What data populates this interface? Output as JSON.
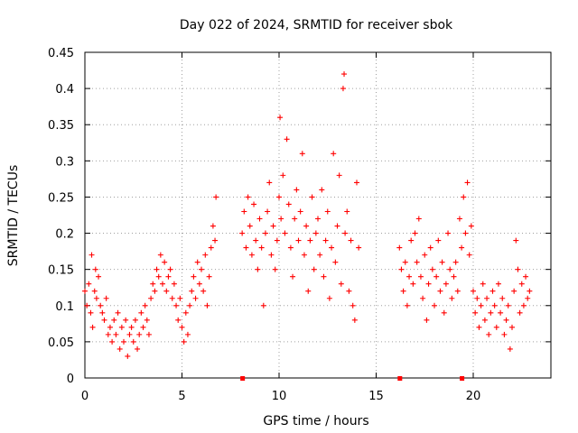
{
  "chart_data": {
    "type": "scatter",
    "title": "Day 022 of 2024, SRMTID for receiver sbok",
    "xlabel": "GPS time / hours",
    "ylabel": "SRMTID / TECUs",
    "xlim": [
      0,
      24
    ],
    "ylim": [
      0,
      0.45
    ],
    "xticks": [
      0,
      5,
      10,
      15,
      20
    ],
    "xtick_labels": [
      "0",
      "5",
      "10",
      "15",
      "20"
    ],
    "yticks": [
      0,
      0.05,
      0.1,
      0.15,
      0.2,
      0.25,
      0.3,
      0.35,
      0.4,
      0.45
    ],
    "ytick_labels": [
      "0",
      "0.05",
      "0.1",
      "0.15",
      "0.2",
      "0.25",
      "0.3",
      "0.35",
      "0.4",
      "0.45"
    ],
    "grid": true,
    "marker": "+",
    "color": "#ff0000",
    "series": [
      {
        "name": "SRMTID",
        "points": [
          [
            0.0,
            0.12
          ],
          [
            0.1,
            0.1
          ],
          [
            0.2,
            0.13
          ],
          [
            0.3,
            0.09
          ],
          [
            0.35,
            0.17
          ],
          [
            0.4,
            0.07
          ],
          [
            0.5,
            0.12
          ],
          [
            0.55,
            0.15
          ],
          [
            0.6,
            0.11
          ],
          [
            0.7,
            0.14
          ],
          [
            0.8,
            0.1
          ],
          [
            0.9,
            0.09
          ],
          [
            1.0,
            0.08
          ],
          [
            1.1,
            0.11
          ],
          [
            1.2,
            0.06
          ],
          [
            1.3,
            0.07
          ],
          [
            1.4,
            0.05
          ],
          [
            1.5,
            0.08
          ],
          [
            1.6,
            0.06
          ],
          [
            1.7,
            0.09
          ],
          [
            1.8,
            0.04
          ],
          [
            1.9,
            0.07
          ],
          [
            2.0,
            0.05
          ],
          [
            2.1,
            0.08
          ],
          [
            2.2,
            0.03
          ],
          [
            2.3,
            0.06
          ],
          [
            2.4,
            0.07
          ],
          [
            2.5,
            0.05
          ],
          [
            2.6,
            0.08
          ],
          [
            2.7,
            0.04
          ],
          [
            2.8,
            0.06
          ],
          [
            2.9,
            0.09
          ],
          [
            3.0,
            0.07
          ],
          [
            3.1,
            0.1
          ],
          [
            3.2,
            0.08
          ],
          [
            3.3,
            0.06
          ],
          [
            3.4,
            0.11
          ],
          [
            3.5,
            0.13
          ],
          [
            3.6,
            0.12
          ],
          [
            3.7,
            0.15
          ],
          [
            3.8,
            0.14
          ],
          [
            3.9,
            0.17
          ],
          [
            4.0,
            0.13
          ],
          [
            4.1,
            0.16
          ],
          [
            4.2,
            0.12
          ],
          [
            4.3,
            0.14
          ],
          [
            4.4,
            0.15
          ],
          [
            4.5,
            0.11
          ],
          [
            4.6,
            0.13
          ],
          [
            4.7,
            0.1
          ],
          [
            4.8,
            0.08
          ],
          [
            4.9,
            0.11
          ],
          [
            5.0,
            0.07
          ],
          [
            5.1,
            0.05
          ],
          [
            5.2,
            0.09
          ],
          [
            5.3,
            0.06
          ],
          [
            5.4,
            0.1
          ],
          [
            5.5,
            0.12
          ],
          [
            5.6,
            0.14
          ],
          [
            5.7,
            0.11
          ],
          [
            5.8,
            0.16
          ],
          [
            5.9,
            0.13
          ],
          [
            6.0,
            0.15
          ],
          [
            6.1,
            0.12
          ],
          [
            6.2,
            0.17
          ],
          [
            6.3,
            0.1
          ],
          [
            6.4,
            0.14
          ],
          [
            6.5,
            0.18
          ],
          [
            6.6,
            0.21
          ],
          [
            6.7,
            0.19
          ],
          [
            6.75,
            0.25
          ],
          [
            8.1,
            0.2
          ],
          [
            8.2,
            0.23
          ],
          [
            8.3,
            0.18
          ],
          [
            8.4,
            0.25
          ],
          [
            8.5,
            0.21
          ],
          [
            8.6,
            0.17
          ],
          [
            8.7,
            0.24
          ],
          [
            8.8,
            0.19
          ],
          [
            8.9,
            0.15
          ],
          [
            9.0,
            0.22
          ],
          [
            9.1,
            0.18
          ],
          [
            9.2,
            0.1
          ],
          [
            9.3,
            0.2
          ],
          [
            9.4,
            0.23
          ],
          [
            9.5,
            0.27
          ],
          [
            9.6,
            0.17
          ],
          [
            9.7,
            0.21
          ],
          [
            9.8,
            0.15
          ],
          [
            9.9,
            0.19
          ],
          [
            10.0,
            0.25
          ],
          [
            10.05,
            0.36
          ],
          [
            10.1,
            0.22
          ],
          [
            10.2,
            0.28
          ],
          [
            10.3,
            0.2
          ],
          [
            10.4,
            0.33
          ],
          [
            10.5,
            0.24
          ],
          [
            10.6,
            0.18
          ],
          [
            10.7,
            0.14
          ],
          [
            10.8,
            0.22
          ],
          [
            10.9,
            0.26
          ],
          [
            11.0,
            0.19
          ],
          [
            11.1,
            0.23
          ],
          [
            11.2,
            0.31
          ],
          [
            11.3,
            0.17
          ],
          [
            11.4,
            0.21
          ],
          [
            11.5,
            0.12
          ],
          [
            11.6,
            0.19
          ],
          [
            11.7,
            0.25
          ],
          [
            11.8,
            0.15
          ],
          [
            11.9,
            0.2
          ],
          [
            12.0,
            0.22
          ],
          [
            12.1,
            0.17
          ],
          [
            12.2,
            0.26
          ],
          [
            12.3,
            0.14
          ],
          [
            12.4,
            0.19
          ],
          [
            12.5,
            0.23
          ],
          [
            12.6,
            0.11
          ],
          [
            12.7,
            0.18
          ],
          [
            12.8,
            0.31
          ],
          [
            12.9,
            0.16
          ],
          [
            13.0,
            0.21
          ],
          [
            13.1,
            0.28
          ],
          [
            13.2,
            0.13
          ],
          [
            13.3,
            0.4
          ],
          [
            13.35,
            0.42
          ],
          [
            13.4,
            0.2
          ],
          [
            13.5,
            0.23
          ],
          [
            13.6,
            0.12
          ],
          [
            13.7,
            0.19
          ],
          [
            13.8,
            0.1
          ],
          [
            13.9,
            0.08
          ],
          [
            14.0,
            0.27
          ],
          [
            14.1,
            0.18
          ],
          [
            16.2,
            0.18
          ],
          [
            16.3,
            0.15
          ],
          [
            16.4,
            0.12
          ],
          [
            16.5,
            0.16
          ],
          [
            16.6,
            0.1
          ],
          [
            16.7,
            0.14
          ],
          [
            16.8,
            0.19
          ],
          [
            16.9,
            0.13
          ],
          [
            17.0,
            0.2
          ],
          [
            17.1,
            0.16
          ],
          [
            17.2,
            0.22
          ],
          [
            17.3,
            0.14
          ],
          [
            17.4,
            0.11
          ],
          [
            17.5,
            0.17
          ],
          [
            17.6,
            0.08
          ],
          [
            17.7,
            0.13
          ],
          [
            17.8,
            0.18
          ],
          [
            17.9,
            0.15
          ],
          [
            18.0,
            0.1
          ],
          [
            18.1,
            0.14
          ],
          [
            18.2,
            0.19
          ],
          [
            18.3,
            0.12
          ],
          [
            18.4,
            0.16
          ],
          [
            18.5,
            0.09
          ],
          [
            18.6,
            0.13
          ],
          [
            18.7,
            0.2
          ],
          [
            18.8,
            0.15
          ],
          [
            18.9,
            0.11
          ],
          [
            19.0,
            0.14
          ],
          [
            19.1,
            0.16
          ],
          [
            19.2,
            0.12
          ],
          [
            19.3,
            0.22
          ],
          [
            19.4,
            0.18
          ],
          [
            19.5,
            0.25
          ],
          [
            19.6,
            0.2
          ],
          [
            19.7,
            0.27
          ],
          [
            19.8,
            0.17
          ],
          [
            19.9,
            0.21
          ],
          [
            20.0,
            0.12
          ],
          [
            20.1,
            0.09
          ],
          [
            20.2,
            0.11
          ],
          [
            20.3,
            0.07
          ],
          [
            20.4,
            0.1
          ],
          [
            20.5,
            0.13
          ],
          [
            20.6,
            0.08
          ],
          [
            20.7,
            0.11
          ],
          [
            20.8,
            0.06
          ],
          [
            20.9,
            0.09
          ],
          [
            21.0,
            0.12
          ],
          [
            21.1,
            0.1
          ],
          [
            21.2,
            0.07
          ],
          [
            21.3,
            0.13
          ],
          [
            21.4,
            0.09
          ],
          [
            21.5,
            0.11
          ],
          [
            21.6,
            0.06
          ],
          [
            21.7,
            0.08
          ],
          [
            21.8,
            0.1
          ],
          [
            21.9,
            0.04
          ],
          [
            22.0,
            0.07
          ],
          [
            22.1,
            0.12
          ],
          [
            22.2,
            0.19
          ],
          [
            22.3,
            0.15
          ],
          [
            22.4,
            0.09
          ],
          [
            22.5,
            0.13
          ],
          [
            22.6,
            0.1
          ],
          [
            22.7,
            0.14
          ],
          [
            22.8,
            0.11
          ],
          [
            22.9,
            0.12
          ]
        ]
      }
    ],
    "gap_markers_x": [
      8.1,
      16.2,
      19.4
    ]
  }
}
